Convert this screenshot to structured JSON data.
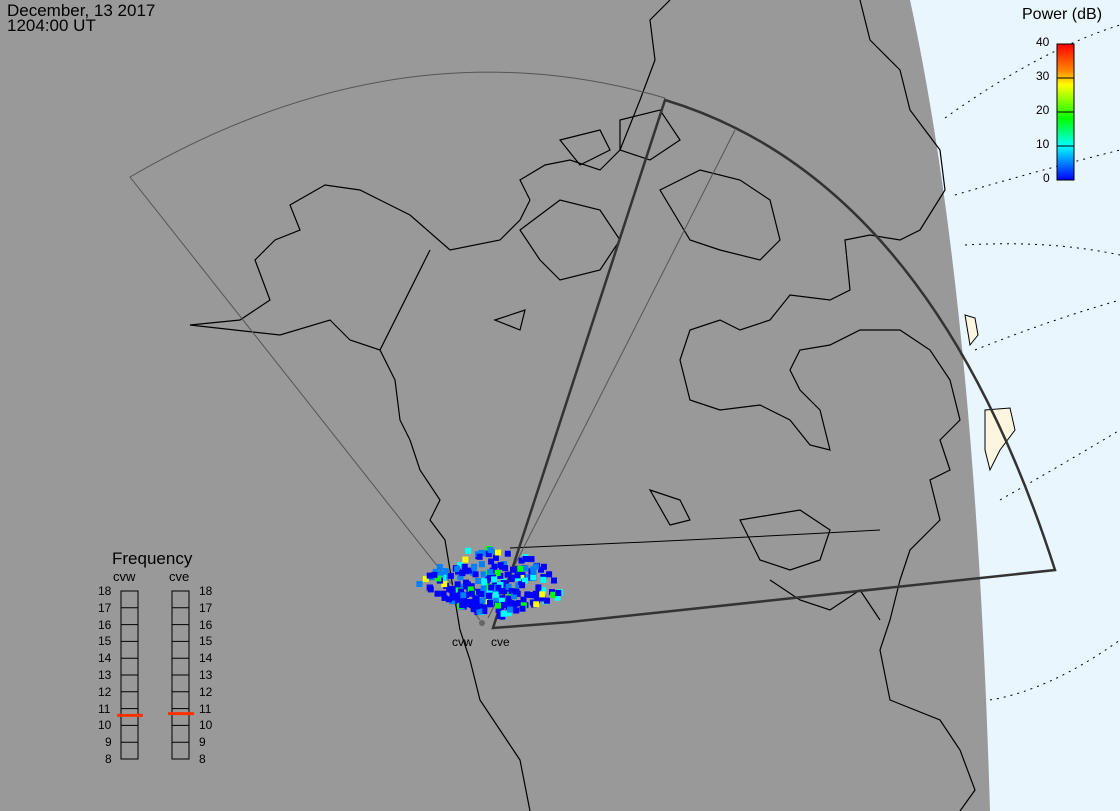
{
  "header": {
    "date": "December, 13 2017",
    "time": "1204:00 UT"
  },
  "power_scale": {
    "title": "Power (dB)",
    "ticks": [
      "40",
      "30",
      "20",
      "10",
      "0"
    ],
    "range": [
      0,
      40
    ],
    "colors": [
      "#0000ff",
      "#00ffff",
      "#00ff00",
      "#ffff00",
      "#ff0000"
    ]
  },
  "frequency": {
    "title": "Frequency",
    "ticks": [
      "18",
      "17",
      "16",
      "15",
      "14",
      "13",
      "12",
      "11",
      "10",
      "9",
      "8"
    ],
    "range": [
      8,
      18
    ],
    "radars": [
      {
        "name": "cvw",
        "value": 10.6
      },
      {
        "name": "cve",
        "value": 10.7
      }
    ],
    "marker_color": "#ff3300"
  },
  "map": {
    "radars": [
      "cvw",
      "cve"
    ],
    "background": "#999999",
    "daylight": "#eaf6fd",
    "landmass_daylit": "#fcf6e0"
  }
}
